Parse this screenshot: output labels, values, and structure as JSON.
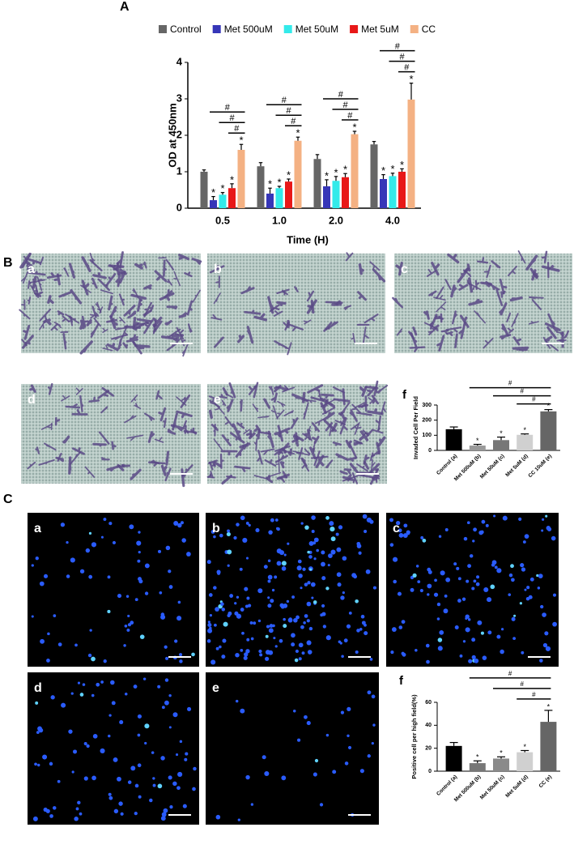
{
  "figure": {
    "panel_labels": [
      "B",
      "C"
    ],
    "invasion_images": [
      "a",
      "b",
      "c",
      "d",
      "e"
    ],
    "staining_images": [
      "a",
      "b",
      "c",
      "d",
      "e"
    ]
  },
  "chart_data": [
    {
      "type": "bar",
      "panel_label": "A",
      "xlabel": "Time (H)",
      "ylabel": "OD at 450nm",
      "categories": [
        "0.5",
        "1.0",
        "2.0",
        "4.0"
      ],
      "series": [
        {
          "name": "Control",
          "color": "#666666",
          "values": [
            1.0,
            1.15,
            1.35,
            1.75
          ],
          "errors": [
            0.05,
            0.1,
            0.12,
            0.08
          ],
          "marks": [
            null,
            null,
            null,
            null
          ]
        },
        {
          "name": "Met 500uM",
          "color": "#3636b8",
          "values": [
            0.22,
            0.4,
            0.6,
            0.8
          ],
          "errors": [
            0.1,
            0.15,
            0.18,
            0.12
          ],
          "marks": [
            "*",
            "*",
            "*",
            "*"
          ]
        },
        {
          "name": "Met 50uM",
          "color": "#33eaea",
          "values": [
            0.37,
            0.55,
            0.75,
            0.88
          ],
          "errors": [
            0.06,
            0.05,
            0.12,
            0.08
          ],
          "marks": [
            "*",
            "*",
            "*",
            "*"
          ]
        },
        {
          "name": "Met 5uM",
          "color": "#e81818",
          "values": [
            0.55,
            0.73,
            0.85,
            1.0
          ],
          "errors": [
            0.12,
            0.07,
            0.1,
            0.08
          ],
          "marks": [
            "*",
            "*",
            "*",
            "*"
          ]
        },
        {
          "name": "CC",
          "color": "#f4b183",
          "values": [
            1.6,
            1.85,
            2.03,
            2.98
          ],
          "errors": [
            0.15,
            0.1,
            0.08,
            0.45
          ],
          "marks": [
            "*",
            "*",
            "*",
            "*"
          ]
        }
      ],
      "bracket_labels": [
        [
          "#",
          "#",
          "#"
        ],
        [
          "#",
          "#",
          "#"
        ],
        [
          "#",
          "#",
          "#"
        ],
        [
          "#",
          "#",
          "#"
        ]
      ],
      "ylim": [
        0,
        4
      ],
      "yticks": [
        0,
        1,
        2,
        3,
        4
      ]
    },
    {
      "type": "bar",
      "panel_label": "f",
      "ylabel": "Invaded Cell Per Field",
      "categories": [
        "Control (a)",
        "Met 500uM (b)",
        "Met 50uM (c)",
        "Met 5uM (d)",
        "CC 10uM (e)"
      ],
      "values": [
        140,
        32,
        68,
        103,
        258
      ],
      "errors": [
        15,
        8,
        20,
        6,
        12
      ],
      "colors": [
        "#000000",
        "#9a9a9a",
        "#777777",
        "#d0d0d0",
        "#666666"
      ],
      "marks": [
        null,
        "*",
        "*",
        "*",
        "*"
      ],
      "bracket_labels": [
        "#",
        "#",
        "#"
      ],
      "ylim": [
        0,
        300
      ],
      "yticks": [
        0,
        100,
        200,
        300
      ]
    },
    {
      "type": "bar",
      "panel_label": "f",
      "ylabel": "Positive cell per high field(%)",
      "categories": [
        "Control (a)",
        "Met 500uM (b)",
        "Met 50uM (c)",
        "Met 5uM (d)",
        "CC (e)"
      ],
      "values": [
        22,
        7,
        11,
        16.5,
        43
      ],
      "errors": [
        3,
        2,
        1.5,
        1.5,
        10
      ],
      "colors": [
        "#000000",
        "#777777",
        "#8a8a8a",
        "#d0d0d0",
        "#666666"
      ],
      "marks": [
        null,
        "*",
        "*",
        "*",
        "*"
      ],
      "bracket_labels": [
        "#",
        "#",
        "#"
      ],
      "ylim": [
        0,
        60
      ],
      "yticks": [
        0,
        20,
        40,
        60
      ]
    }
  ]
}
